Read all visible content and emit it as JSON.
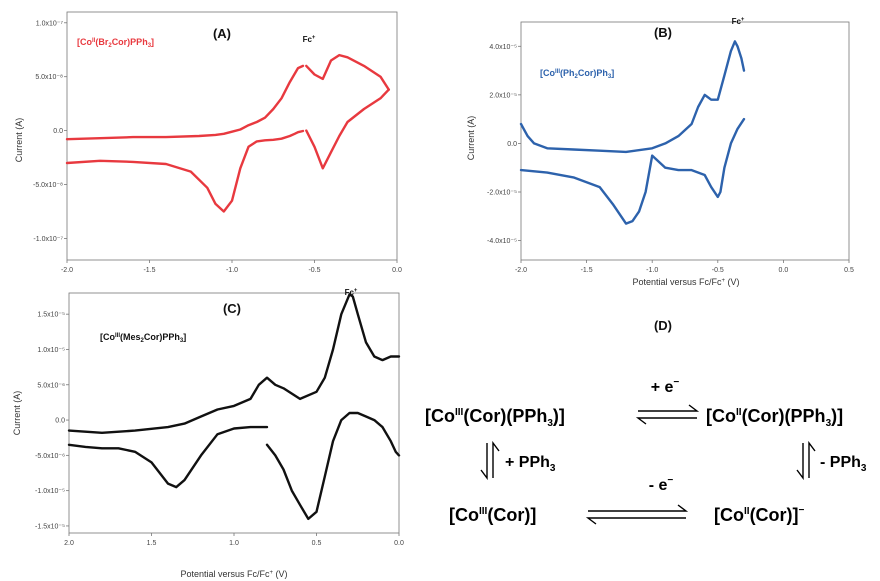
{
  "colors": {
    "A": "#e8393f",
    "B": "#2d62ac",
    "C": "#111111"
  },
  "labels": {
    "current_a": "Current (A)",
    "current_b": "Current (A)",
    "current_c": "Current (A)",
    "potential_b": "Potential versus Fc/Fc",
    "potential_b_tail": "(V)",
    "potential_c": "Potential versus Fc/Fc",
    "potential_c_tail": "(V)",
    "fc": "Fc",
    "fc_sup": "+"
  },
  "panels": {
    "A": {
      "letter": "(A)",
      "compound": [
        "[Co",
        "II",
        "(Br",
        "2",
        "Cor)PPh",
        "3",
        "]"
      ]
    },
    "B": {
      "letter": "(B)",
      "compound": [
        "[Co",
        "III",
        "(Ph",
        "2",
        "Cor)Ph",
        "3",
        "]"
      ]
    },
    "C": {
      "letter": "(C)",
      "compound": [
        "[Co",
        "III",
        "(Mes",
        "2",
        "Cor)PPh",
        "3",
        "]"
      ]
    },
    "D": {
      "letter": "(D)"
    }
  },
  "scheme": {
    "top_left": [
      "[Co",
      "III",
      "(Cor)(PPh",
      "3",
      ")]"
    ],
    "top_right": [
      "[Co",
      "II",
      "(Cor)(PPh",
      "3",
      ")]"
    ],
    "bottom_left": [
      "[Co",
      "III",
      "(Cor)]"
    ],
    "bottom_right": [
      "[Co",
      "II",
      "(Cor)]",
      "−"
    ],
    "top_arrow": [
      "+ e",
      "−"
    ],
    "bottom_arrow": [
      "- e",
      "−"
    ],
    "left_arrow": [
      "+ PPh",
      "3"
    ],
    "right_arrow": [
      "- PPh",
      "3"
    ]
  },
  "chart_data": [
    {
      "id": "A",
      "type": "line",
      "xlabel": "",
      "ylabel": "Current (A)",
      "xlim": [
        -2.0,
        0.0
      ],
      "ylim": [
        -1.2e-07,
        1.1e-07
      ],
      "xticks": [
        "-2.0",
        "-1.5",
        "-1.0",
        "-0.5",
        "0.0"
      ],
      "yticks": [
        "1.0x10⁻⁷",
        "5.0x10⁻⁸",
        "0.0",
        "-5.0x10⁻⁸",
        "-1.0x10⁻⁷"
      ],
      "yticks_values": [
        1e-07,
        5e-08,
        0.0,
        -5e-08,
        -1e-07
      ],
      "series": [
        {
          "x": [
            -2.0,
            -1.8,
            -1.6,
            -1.4,
            -1.25,
            -1.15,
            -1.1,
            -1.05,
            -1.0,
            -0.95,
            -0.9,
            -0.85,
            -0.8,
            -0.75,
            -0.7,
            -0.65,
            -0.62,
            -0.6,
            -0.57
          ],
          "y": [
            -3e-08,
            -2.8e-08,
            -2.9e-08,
            -3.1e-08,
            -3.8e-08,
            -5.3e-08,
            -6.8e-08,
            -7.5e-08,
            -6.5e-08,
            -3.5e-08,
            -1.5e-08,
            -1e-08,
            -9e-09,
            -8.5e-09,
            -7.5e-09,
            -5e-09,
            -3e-09,
            -1.5e-09,
            -4e-10
          ]
        },
        {
          "x": [
            -0.57,
            -0.6,
            -0.65,
            -0.7,
            -0.75,
            -0.8,
            -0.85,
            -0.9,
            -0.95,
            -1.0,
            -1.05,
            -1.1,
            -1.2,
            -1.4,
            -1.6,
            -1.8,
            -2.0
          ],
          "y": [
            6e-08,
            5.8e-08,
            4.5e-08,
            3e-08,
            2e-08,
            1.2e-08,
            8e-09,
            5e-09,
            1e-09,
            -1e-09,
            -3e-09,
            -4e-09,
            -5e-09,
            -6e-09,
            -6e-09,
            -7e-09,
            -8e-09
          ]
        },
        {
          "x": [
            -0.55,
            -0.5,
            -0.45,
            -0.4,
            -0.35,
            -0.3,
            -0.2,
            -0.1,
            -0.05
          ],
          "y": [
            0.0,
            -1.5e-08,
            -3.5e-08,
            -2e-08,
            -5e-09,
            8e-09,
            2e-08,
            3e-08,
            3.8e-08
          ]
        },
        {
          "x": [
            -0.05,
            -0.1,
            -0.2,
            -0.3,
            -0.35,
            -0.4,
            -0.45,
            -0.5,
            -0.55
          ],
          "y": [
            3.8e-08,
            5e-08,
            6e-08,
            6.8e-08,
            7e-08,
            6.5e-08,
            4.8e-08,
            5.2e-08,
            6e-08
          ]
        }
      ]
    },
    {
      "id": "B",
      "type": "line",
      "xlabel": "Potential versus Fc/Fc+ (V)",
      "ylabel": "Current (A)",
      "xlim": [
        -2.0,
        0.5
      ],
      "ylim": [
        -4.8e-05,
        5e-05
      ],
      "xticks": [
        "-2.0",
        "-1.5",
        "-1.0",
        "-0.5",
        "0.0",
        "0.5"
      ],
      "yticks": [
        "4.0x10⁻⁵",
        "2.0x10⁻⁵",
        "0.0",
        "-2.0x10⁻⁵",
        "-4.0x10⁻⁵"
      ],
      "yticks_values": [
        4e-05,
        2e-05,
        0.0,
        -2e-05,
        -4e-05
      ],
      "series": [
        {
          "x": [
            -2.0,
            -1.95,
            -1.9,
            -1.8,
            -1.6,
            -1.4,
            -1.2,
            -1.0,
            -0.9,
            -0.8,
            -0.7,
            -0.65,
            -0.6,
            -0.55,
            -0.5,
            -0.45,
            -0.4,
            -0.37,
            -0.35,
            -0.32,
            -0.3
          ],
          "y": [
            8e-06,
            3e-06,
            0.0,
            -2e-06,
            -2.5e-06,
            -3e-06,
            -3.5e-06,
            -2e-06,
            0.0,
            3e-06,
            8e-06,
            1.5e-05,
            2e-05,
            1.8e-05,
            1.8e-05,
            2.8e-05,
            3.8e-05,
            4.2e-05,
            4e-05,
            3.5e-05,
            3e-05
          ]
        },
        {
          "x": [
            -0.3,
            -0.35,
            -0.4,
            -0.45,
            -0.48,
            -0.5,
            -0.55,
            -0.6,
            -0.7,
            -0.8,
            -0.9,
            -1.0,
            -1.05,
            -1.1,
            -1.15,
            -1.2,
            -1.3,
            -1.4,
            -1.6,
            -1.8,
            -2.0
          ],
          "y": [
            1e-05,
            6e-06,
            0.0,
            -1e-05,
            -2e-05,
            -2.2e-05,
            -1.8e-05,
            -1.3e-05,
            -1.1e-05,
            -1.1e-05,
            -1e-05,
            -5e-06,
            -2e-05,
            -2.8e-05,
            -3.2e-05,
            -3.3e-05,
            -2.5e-05,
            -1.8e-05,
            -1.4e-05,
            -1.2e-05,
            -1.1e-05
          ]
        }
      ]
    },
    {
      "id": "C",
      "type": "line",
      "xlabel": "Potential versus Fc/Fc+ (V)",
      "ylabel": "Current (A)",
      "xlim": [
        2.0,
        0.0
      ],
      "ylim": [
        -1.6e-05,
        1.8e-05
      ],
      "xticks": [
        "2.0",
        "1.5",
        "1.0",
        "0.5",
        "0.0"
      ],
      "yticks": [
        "1.5x10⁻⁵",
        "1.0x10⁻⁵",
        "5.0x10⁻⁶",
        "0.0",
        "-5.0x10⁻⁶",
        "-1.0x10⁻⁵",
        "-1.5x10⁻⁵"
      ],
      "yticks_values": [
        1.5e-05,
        1e-05,
        5e-06,
        0.0,
        -5e-06,
        -1e-05,
        -1.5e-05
      ],
      "series": [
        {
          "x": [
            2.0,
            1.8,
            1.6,
            1.4,
            1.3,
            1.2,
            1.1,
            1.0,
            0.9,
            0.85,
            0.8,
            0.75,
            0.7,
            0.6,
            0.5,
            0.45,
            0.4,
            0.35,
            0.3,
            0.28,
            0.25,
            0.2,
            0.15,
            0.1,
            0.05,
            0.0
          ],
          "y": [
            -1.5e-06,
            -1.8e-06,
            -1.5e-06,
            -1e-06,
            -5e-07,
            5e-07,
            1.5e-06,
            2e-06,
            3e-06,
            5e-06,
            6e-06,
            5e-06,
            4.5e-06,
            3e-06,
            4e-06,
            6e-06,
            1e-05,
            1.5e-05,
            1.78e-05,
            1.75e-05,
            1.5e-05,
            1.1e-05,
            9e-06,
            8.5e-06,
            9e-06,
            9e-06
          ]
        },
        {
          "x": [
            0.0,
            0.02,
            0.05,
            0.1,
            0.15,
            0.2,
            0.25,
            0.3,
            0.35,
            0.4,
            0.45,
            0.5,
            0.55,
            0.6,
            0.65,
            0.7,
            0.75,
            0.8
          ],
          "y": [
            -5e-06,
            -4.5e-06,
            -3e-06,
            -1e-06,
            0.0,
            5e-07,
            1e-06,
            1e-06,
            0.0,
            -3e-06,
            -8e-06,
            -1.3e-05,
            -1.4e-05,
            -1.2e-05,
            -1e-05,
            -7e-06,
            -5e-06,
            -3.5e-06
          ]
        },
        {
          "x": [
            0.8,
            0.9,
            1.0,
            1.1,
            1.2,
            1.3,
            1.35,
            1.4,
            1.5,
            1.6,
            1.7,
            1.8,
            1.9,
            2.0
          ],
          "y": [
            -1e-06,
            -1e-06,
            -1.2e-06,
            -2e-06,
            -5e-06,
            -8.5e-06,
            -9.5e-06,
            -9e-06,
            -6e-06,
            -4.5e-06,
            -4e-06,
            -4e-06,
            -3.8e-06,
            -3.5e-06
          ]
        }
      ]
    }
  ]
}
